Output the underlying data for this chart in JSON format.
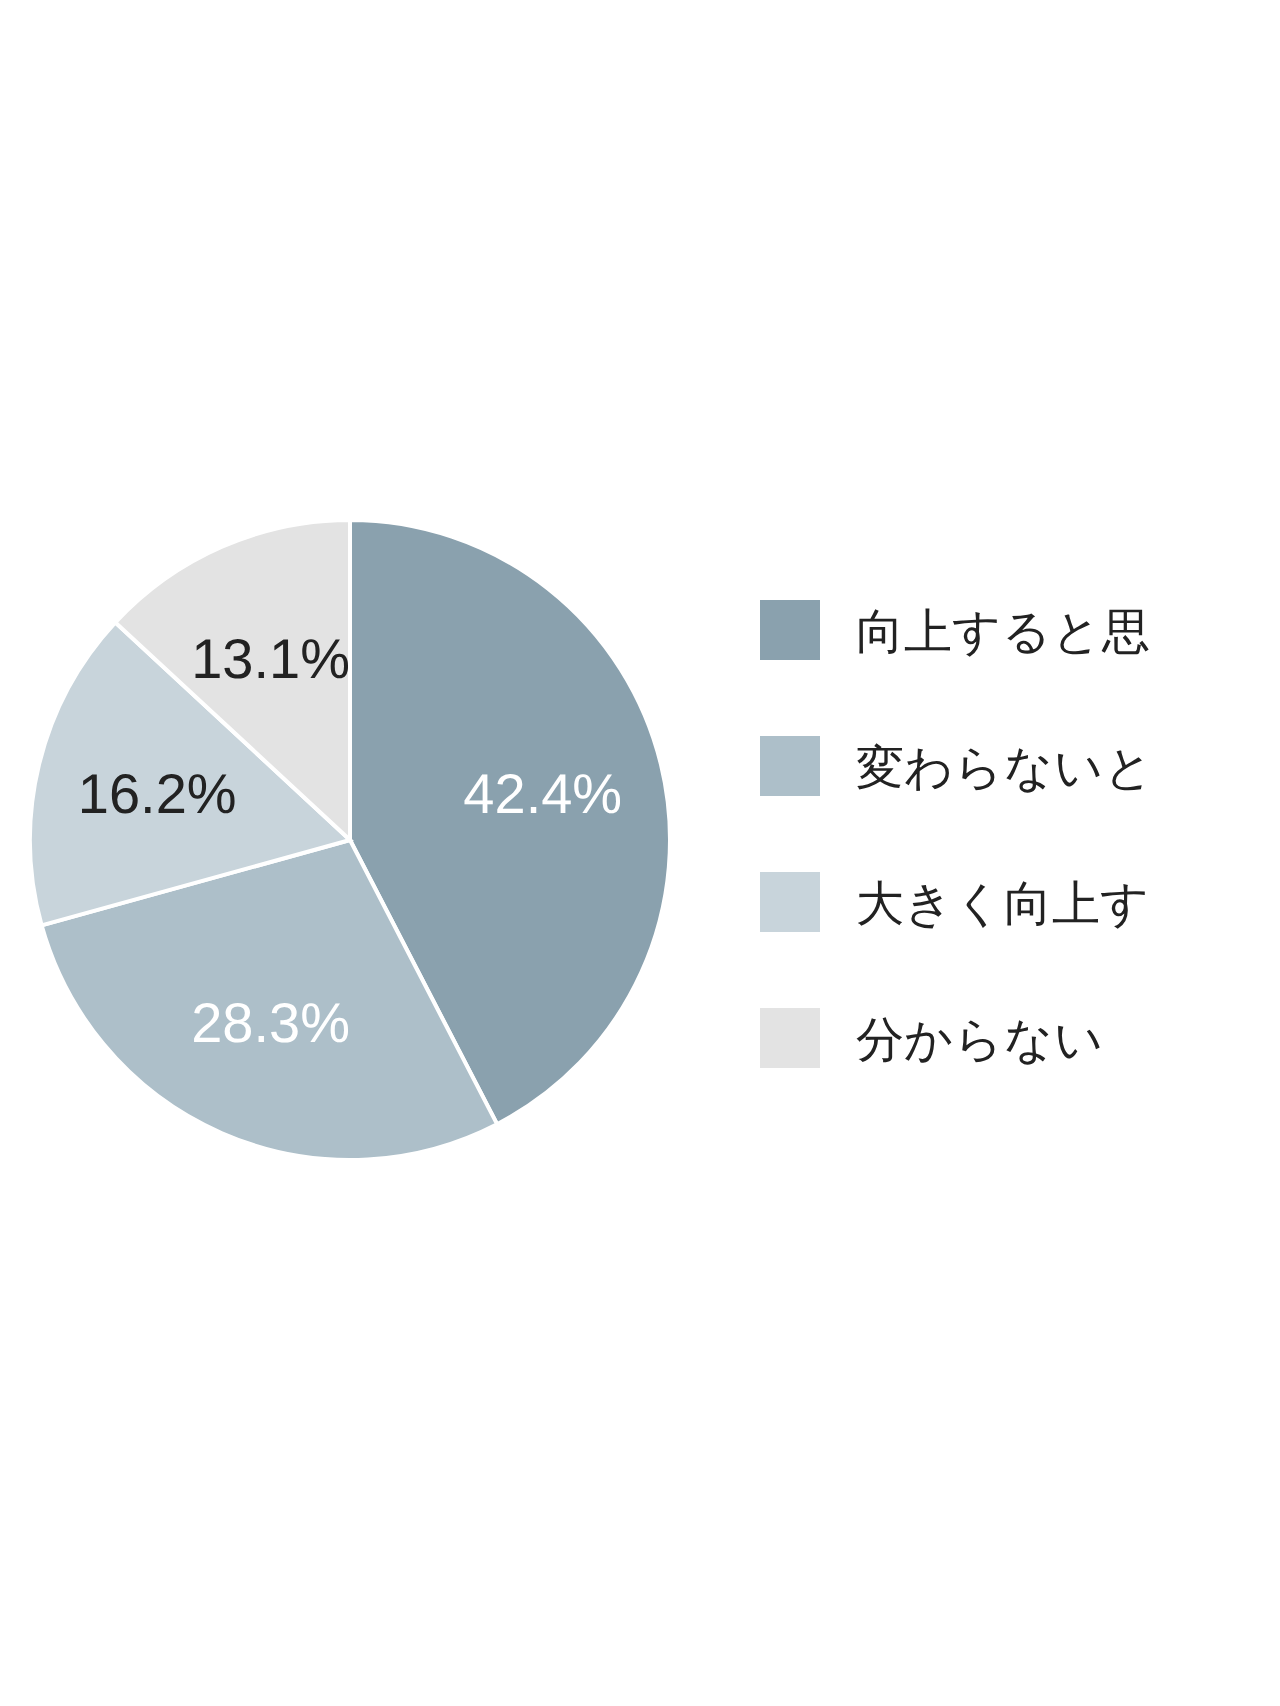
{
  "chart_data": {
    "type": "pie",
    "categories": [
      "向上すると思",
      "変わらないと",
      "大きく向上す",
      "分からない"
    ],
    "values": [
      42.4,
      28.3,
      16.2,
      13.1
    ],
    "colors": [
      "#8aa1ae",
      "#adbfc9",
      "#c8d4db",
      "#e3e3e3"
    ],
    "value_labels": [
      "42.4%",
      "28.3%",
      "16.2%",
      "13.1%"
    ],
    "legend": "right"
  }
}
